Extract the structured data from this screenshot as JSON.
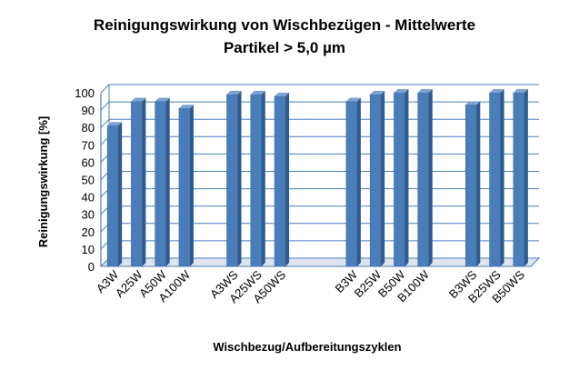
{
  "chart_data": {
    "type": "bar",
    "title": [
      "Reinigungswirkung von Wischbezügen - Mittelwerte",
      "Partikel > 5,0 µm"
    ],
    "xlabel": "Wischbezug/Aufbereitungszyklen",
    "ylabel": "Reinigungswirkung [%]",
    "ylim": [
      0,
      100
    ],
    "yticks": [
      "0",
      "10",
      "20",
      "30",
      "40",
      "50",
      "60",
      "70",
      "80",
      "90",
      "100"
    ],
    "grid": true,
    "categories": [
      "A3W",
      "A25W",
      "A50W",
      "A100W",
      "",
      "A3WS",
      "A25WS",
      "A50WS",
      "",
      "",
      "B3W",
      "B25W",
      "B50W",
      "B100W",
      "",
      "B3WS",
      "B25WS",
      "B50WS"
    ],
    "values": [
      81,
      95,
      95,
      91,
      null,
      99,
      99,
      98,
      null,
      null,
      95,
      99,
      100,
      100,
      null,
      93,
      100,
      100
    ],
    "bar_color": "#4a7ebb"
  }
}
